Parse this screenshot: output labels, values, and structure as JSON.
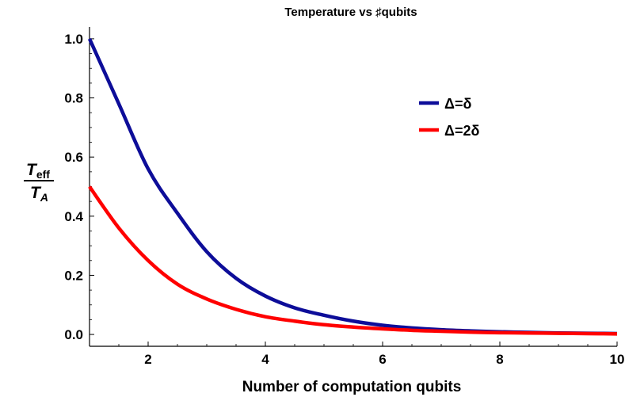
{
  "chart_data": {
    "type": "line",
    "title": "Temperature vs ♯qubits",
    "xlabel": "Number of computation qubits",
    "ylabel": {
      "numerator": "T",
      "numerator_sub": "eff",
      "denominator": "T",
      "denominator_sub": "A"
    },
    "xlim": [
      1,
      10
    ],
    "ylim": [
      -0.04,
      1.04
    ],
    "x_ticks": [
      2,
      4,
      6,
      8,
      10
    ],
    "y_ticks": [
      0.0,
      0.2,
      0.4,
      0.6,
      0.8,
      1.0
    ],
    "x_tick_labels": [
      "2",
      "4",
      "6",
      "8",
      "10"
    ],
    "y_tick_labels": [
      "0.0",
      "0.2",
      "0.4",
      "0.6",
      "0.8",
      "1.0"
    ],
    "grid": false,
    "legend_position": "upper-right",
    "x": [
      1,
      1.5,
      2,
      2.5,
      3,
      3.5,
      4,
      4.5,
      5,
      5.5,
      6,
      6.5,
      7,
      7.5,
      8,
      8.5,
      9,
      9.5,
      10
    ],
    "series": [
      {
        "name": "Δ=δ",
        "color": "#0d0d99",
        "values": [
          1.0,
          0.78,
          0.56,
          0.41,
          0.28,
          0.19,
          0.13,
          0.09,
          0.065,
          0.045,
          0.031,
          0.022,
          0.016,
          0.012,
          0.009,
          0.007,
          0.005,
          0.004,
          0.003
        ]
      },
      {
        "name": "Δ=2δ",
        "color": "#ff0000",
        "values": [
          0.5,
          0.36,
          0.25,
          0.17,
          0.12,
          0.085,
          0.06,
          0.045,
          0.033,
          0.025,
          0.019,
          0.014,
          0.011,
          0.008,
          0.006,
          0.005,
          0.004,
          0.003,
          0.002
        ]
      }
    ]
  }
}
